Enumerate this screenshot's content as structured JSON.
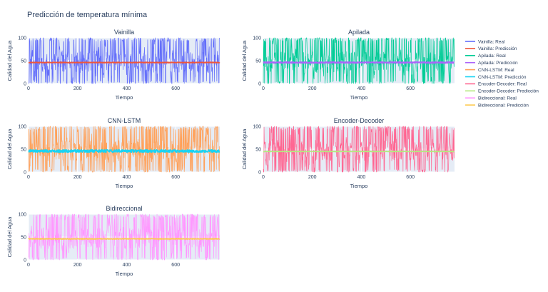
{
  "figure_title": "Predicción de temperatura mínima",
  "colors": {
    "plot_bg": "#e5ecf6",
    "grid": "#ffffff",
    "text": "#2a3f5f"
  },
  "chart_data": [
    {
      "type": "line",
      "title": "Vainilla",
      "xlabel": "Tiempo",
      "ylabel": "Calidad del Agua",
      "xlim": [
        0,
        780
      ],
      "ylim": [
        0,
        100
      ],
      "xticks": [
        0,
        200,
        400,
        600
      ],
      "yticks": [
        0,
        50,
        100
      ],
      "series": [
        {
          "name": "Vainilla: Real",
          "color": "#636efa",
          "kind": "noisy",
          "points": 780,
          "low": 0,
          "high": 100,
          "mean": 47,
          "seed": 11
        },
        {
          "name": "Vainilla: Predicción",
          "color": "#ef553b",
          "kind": "flat",
          "points": 780,
          "mean": 46,
          "jitter": 0.8,
          "seed": 12
        }
      ]
    },
    {
      "type": "line",
      "title": "Apilada",
      "xlabel": "Tiempo",
      "ylabel": "Calidad del Agua",
      "xlim": [
        0,
        780
      ],
      "ylim": [
        0,
        100
      ],
      "xticks": [
        0,
        200,
        400,
        600
      ],
      "yticks": [
        0,
        50,
        100
      ],
      "series": [
        {
          "name": "Apilada: Real",
          "color": "#00cc96",
          "kind": "noisy",
          "points": 780,
          "low": 0,
          "high": 100,
          "mean": 47,
          "seed": 21
        },
        {
          "name": "Apilada: Predicción",
          "color": "#ab63fa",
          "kind": "flat",
          "points": 780,
          "mean": 46,
          "jitter": 1.5,
          "seed": 22
        }
      ]
    },
    {
      "type": "line",
      "title": "CNN-LSTM",
      "xlabel": "Tiempo",
      "ylabel": "Calidad del Agua",
      "xlim": [
        0,
        780
      ],
      "ylim": [
        0,
        100
      ],
      "xticks": [
        0,
        200,
        400,
        600
      ],
      "yticks": [
        0,
        50,
        100
      ],
      "series": [
        {
          "name": "CNN-LSTM: Real",
          "color": "#ffa15a",
          "kind": "noisy",
          "points": 780,
          "low": 0,
          "high": 100,
          "mean": 47,
          "seed": 31
        },
        {
          "name": "CNN-LSTM: Predicción",
          "color": "#19d3f3",
          "kind": "flat",
          "points": 780,
          "mean": 46,
          "jitter": 3,
          "seed": 32
        }
      ]
    },
    {
      "type": "line",
      "title": "Encoder-Decoder",
      "xlabel": "Tiempo",
      "ylabel": "Calidad del Agua",
      "xlim": [
        0,
        780
      ],
      "ylim": [
        0,
        100
      ],
      "xticks": [
        0,
        200,
        400,
        600
      ],
      "yticks": [
        0,
        50,
        100
      ],
      "series": [
        {
          "name": "Encoder-Decoder: Real",
          "color": "#ff6692",
          "kind": "noisy",
          "points": 780,
          "low": 0,
          "high": 100,
          "mean": 47,
          "seed": 41
        },
        {
          "name": "Encoder-Decoder: Predicción",
          "color": "#b6e880",
          "kind": "flat",
          "points": 780,
          "mean": 45,
          "jitter": 0.6,
          "seed": 42
        }
      ]
    },
    {
      "type": "line",
      "title": "Bidireccional",
      "xlabel": "Tiempo",
      "ylabel": "Calidad del Agua",
      "xlim": [
        0,
        780
      ],
      "ylim": [
        0,
        100
      ],
      "xticks": [
        0,
        200,
        400,
        600
      ],
      "yticks": [
        0,
        50,
        100
      ],
      "series": [
        {
          "name": "Bidireccional: Real",
          "color": "#ff97ff",
          "kind": "noisy",
          "points": 780,
          "low": 0,
          "high": 100,
          "mean": 47,
          "seed": 51
        },
        {
          "name": "Bidireccional: Predicción",
          "color": "#fecb52",
          "kind": "flat",
          "points": 780,
          "mean": 46,
          "jitter": 0.8,
          "seed": 52
        }
      ]
    }
  ]
}
